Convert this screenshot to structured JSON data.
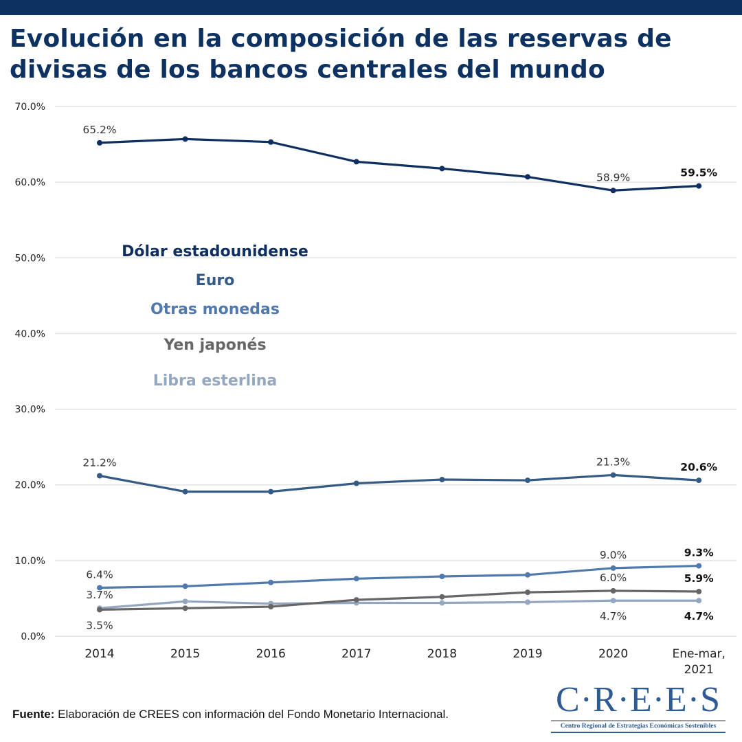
{
  "header": {
    "title": "Evolución en la composición de las reservas de divisas de los bancos centrales del mundo"
  },
  "footer": {
    "source_label": "Fuente:",
    "source_text": "Elaboración de CREES con información del Fondo Monetario Internacional."
  },
  "logo": {
    "mark": "C·R·E·E·S",
    "subtitle": "Centro Regional de Estrategias Económicas Sostenibles"
  },
  "colors": {
    "brand": "#0d3161",
    "gridline": "#e3e3e3"
  },
  "chart_data": {
    "type": "line",
    "title": "Evolución en la composición de las reservas de divisas de los bancos centrales del mundo",
    "xlabel": "",
    "ylabel": "",
    "categories": [
      "2014",
      "2015",
      "2016",
      "2017",
      "2018",
      "2019",
      "2020",
      "Ene-mar, 2021"
    ],
    "ylim": [
      0,
      70
    ],
    "yticks": [
      0,
      10,
      20,
      30,
      40,
      50,
      60,
      70
    ],
    "ytick_labels": [
      "0.0%",
      "10.0%",
      "20.0%",
      "30.0%",
      "40.0%",
      "50.0%",
      "60.0%",
      "70.0%"
    ],
    "grid": true,
    "legend_position": "center-left",
    "series": [
      {
        "name": "Dólar estadounidense",
        "color": "#0f2f60",
        "values": [
          65.2,
          65.7,
          65.3,
          62.7,
          61.8,
          60.7,
          58.9,
          59.5
        ],
        "labels": [
          {
            "index": 0,
            "text": "65.2%",
            "bold": false,
            "pos": "above"
          },
          {
            "index": 6,
            "text": "58.9%",
            "bold": false,
            "pos": "above"
          },
          {
            "index": 7,
            "text": "59.5%",
            "bold": true,
            "pos": "above"
          }
        ]
      },
      {
        "name": "Euro",
        "color": "#355a86",
        "values": [
          21.2,
          19.1,
          19.1,
          20.2,
          20.7,
          20.6,
          21.3,
          20.6
        ],
        "labels": [
          {
            "index": 0,
            "text": "21.2%",
            "bold": false,
            "pos": "above"
          },
          {
            "index": 6,
            "text": "21.3%",
            "bold": false,
            "pos": "above"
          },
          {
            "index": 7,
            "text": "20.6%",
            "bold": true,
            "pos": "above"
          }
        ]
      },
      {
        "name": "Otras monedas",
        "color": "#5079ad",
        "values": [
          6.4,
          6.6,
          7.1,
          7.6,
          7.9,
          8.1,
          9.0,
          9.3
        ],
        "labels": [
          {
            "index": 0,
            "text": "6.4%",
            "bold": false,
            "pos": "above"
          },
          {
            "index": 6,
            "text": "9.0%",
            "bold": false,
            "pos": "above"
          },
          {
            "index": 7,
            "text": "9.3%",
            "bold": true,
            "pos": "above"
          }
        ]
      },
      {
        "name": "Yen japonés",
        "color": "#666666",
        "values": [
          3.5,
          3.7,
          3.9,
          4.8,
          5.2,
          5.8,
          6.0,
          5.9
        ],
        "labels": [
          {
            "index": 0,
            "text": "3.5%",
            "bold": false,
            "pos": "below"
          },
          {
            "index": 6,
            "text": "6.0%",
            "bold": false,
            "pos": "above"
          },
          {
            "index": 7,
            "text": "5.9%",
            "bold": true,
            "pos": "above"
          }
        ]
      },
      {
        "name": "Libra esterlina",
        "color": "#94a7c0",
        "values": [
          3.7,
          4.6,
          4.3,
          4.4,
          4.4,
          4.5,
          4.7,
          4.7
        ],
        "labels": [
          {
            "index": 0,
            "text": "3.7%",
            "bold": false,
            "pos": "above"
          },
          {
            "index": 6,
            "text": "4.7%",
            "bold": false,
            "pos": "below"
          },
          {
            "index": 7,
            "text": "4.7%",
            "bold": true,
            "pos": "below"
          }
        ]
      }
    ]
  }
}
